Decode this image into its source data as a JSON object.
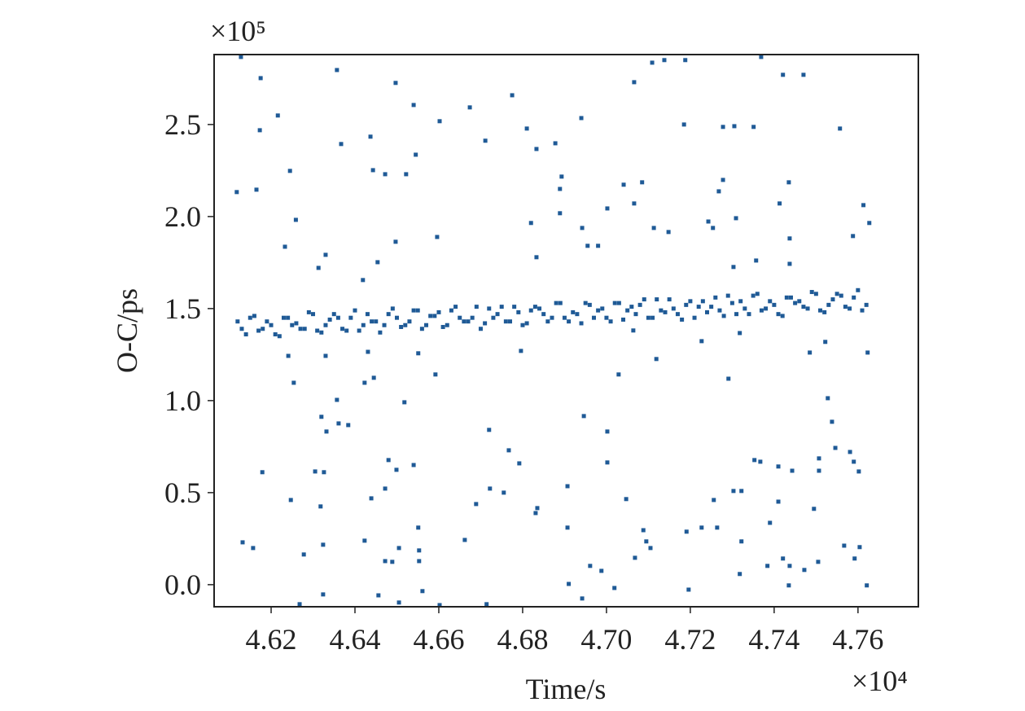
{
  "chart_data": {
    "type": "scatter",
    "x_label": "Time/s",
    "y_label": "O-C/ps",
    "x_multiplier": "×10⁴",
    "y_multiplier": "×10⁵",
    "color": "#1f5a96",
    "xlim": [
      4.6064,
      4.7744
    ],
    "ylim": [
      -0.12,
      2.88
    ],
    "xticks": [
      4.62,
      4.64,
      4.66,
      4.68,
      {
        "value": 4.7,
        "label": "4.70"
      },
      4.72,
      4.74,
      4.76
    ],
    "yticks": [
      {
        "value": 0,
        "label": "0.0"
      },
      0.5,
      {
        "value": 1,
        "label": "1.0"
      },
      1.5,
      {
        "value": 2,
        "label": "2.0"
      },
      2.5
    ],
    "x": [
      4.6128,
      4.6175,
      4.6118,
      4.6165,
      4.6173,
      4.6216,
      4.6245,
      4.6259,
      4.6233,
      4.6357,
      4.6367,
      4.6437,
      4.6443,
      4.6472,
      4.6497,
      4.6522,
      4.654,
      4.6545,
      4.6454,
      4.6497,
      4.6596,
      4.6602,
      4.6313,
      4.633,
      4.6419,
      4.6674,
      4.6711,
      4.6775,
      4.681,
      4.682,
      4.6833,
      4.6833,
      4.6878,
      4.6893,
      4.6889,
      4.6889,
      4.694,
      4.6942,
      4.6955,
      4.698,
      4.7002,
      4.7041,
      4.7066,
      4.7066,
      4.7085,
      4.7113,
      4.7109,
      4.7138,
      4.7148,
      4.7185,
      4.7188,
      4.7243,
      4.7254,
      4.7268,
      4.7278,
      4.7278,
      4.7305,
      4.7309,
      4.7303,
      4.7351,
      4.7357,
      4.7369,
      4.7413,
      4.7421,
      4.7435,
      4.7437,
      4.7437,
      4.747,
      4.7557,
      4.7613,
      4.7627,
      4.7588,
      4.6241,
      4.6254,
      4.633,
      4.6357,
      4.632,
      4.6332,
      4.6361,
      4.6384,
      4.6423,
      4.6445,
      4.6431,
      4.6518,
      4.6551,
      4.6592,
      4.6796,
      4.672,
      4.6946,
      4.7002,
      4.7029,
      4.7119,
      4.7064,
      4.7227,
      4.7291,
      4.7318,
      4.7485,
      4.7522,
      4.7528,
      4.7538,
      4.7623,
      4.7546,
      4.7581,
      4.759,
      4.7602,
      4.7507,
      4.7507,
      4.7443,
      4.741,
      4.7353,
      4.7367,
      4.7322,
      4.7303,
      4.7256,
      4.741,
      4.7495,
      4.739,
      4.7322,
      4.7264,
      4.7227,
      4.7191,
      4.7088,
      4.7095,
      4.7105,
      4.7068,
      4.7047,
      4.6988,
      4.6961,
      4.7002,
      4.6907,
      4.6907,
      4.6835,
      4.6792,
      4.6767,
      4.6755,
      4.6722,
      4.6689,
      4.6662,
      4.6831,
      4.654,
      4.6499,
      4.648,
      4.6472,
      4.6439,
      4.6247,
      4.6305,
      4.6326,
      4.6318,
      4.6179,
      4.6132,
      4.6157,
      4.6278,
      4.6324,
      4.6423,
      4.6472,
      4.6489,
      4.6505,
      4.6551,
      4.6553,
      4.6553,
      4.6561,
      4.6602,
      4.6456,
      4.6505,
      4.6324,
      4.6268,
      4.6714,
      4.691,
      4.6942,
      4.7019,
      4.7196,
      4.7318,
      4.7384,
      4.7421,
      4.7435,
      4.7437,
      4.7472,
      4.7505,
      4.7567,
      4.7592,
      4.7604,
      4.7621,
      4.612,
      4.614,
      4.616,
      4.618,
      4.62,
      4.622,
      4.624,
      4.626,
      4.628,
      4.63,
      4.632,
      4.634,
      4.636,
      4.638,
      4.64,
      4.642,
      4.644,
      4.646,
      4.648,
      4.65,
      4.652,
      4.654,
      4.656,
      4.658,
      4.66,
      4.662,
      4.664,
      4.666,
      4.668,
      4.67,
      4.672,
      4.674,
      4.676,
      4.678,
      4.68,
      4.682,
      4.684,
      4.686,
      4.688,
      4.69,
      4.692,
      4.694,
      4.696,
      4.698,
      4.7,
      4.702,
      4.704,
      4.706,
      4.708,
      4.71,
      4.712,
      4.714,
      4.716,
      4.718,
      4.72,
      4.722,
      4.724,
      4.726,
      4.728,
      4.73,
      4.732,
      4.734,
      4.736,
      4.738,
      4.74,
      4.742,
      4.744,
      4.746,
      4.748,
      4.75,
      4.752,
      4.754,
      4.756,
      4.758,
      4.76,
      4.762,
      4.613,
      4.615,
      4.617,
      4.619,
      4.621,
      4.623,
      4.625,
      4.627,
      4.629,
      4.631,
      4.633,
      4.635,
      4.637,
      4.639,
      4.641,
      4.643,
      4.645,
      4.647,
      4.649,
      4.651,
      4.653,
      4.655,
      4.657,
      4.659,
      4.661,
      4.663,
      4.665,
      4.667,
      4.669,
      4.671,
      4.673,
      4.675,
      4.677,
      4.679,
      4.681,
      4.683,
      4.685,
      4.687,
      4.689,
      4.691,
      4.693,
      4.695,
      4.697,
      4.699,
      4.701,
      4.703,
      4.705,
      4.707,
      4.709,
      4.711,
      4.713,
      4.715,
      4.717,
      4.719,
      4.721,
      4.723,
      4.725,
      4.727,
      4.729,
      4.731,
      4.733,
      4.735,
      4.737,
      4.739,
      4.741,
      4.743,
      4.745,
      4.747,
      4.749,
      4.751,
      4.753,
      4.755,
      4.757,
      4.759,
      4.761
    ],
    "values": [
      2.867,
      2.752,
      2.133,
      2.146,
      2.469,
      2.549,
      2.248,
      1.982,
      1.836,
      2.796,
      2.394,
      2.434,
      2.252,
      2.23,
      2.726,
      2.23,
      2.606,
      2.336,
      1.752,
      1.863,
      1.889,
      2.518,
      1.721,
      1.792,
      1.655,
      2.593,
      2.412,
      2.659,
      2.478,
      1.965,
      2.367,
      1.779,
      2.398,
      2.217,
      2.018,
      2.15,
      2.535,
      1.938,
      1.841,
      1.841,
      2.044,
      2.173,
      2.071,
      2.73,
      2.186,
      1.938,
      2.836,
      2.85,
      1.916,
      2.5,
      2.85,
      1.973,
      1.938,
      2.137,
      2.199,
      2.487,
      2.491,
      1.991,
      1.726,
      2.487,
      1.761,
      2.867,
      2.071,
      2.77,
      2.186,
      1.881,
      1.743,
      2.77,
      2.478,
      2.062,
      1.965,
      1.894,
      1.243,
      1.097,
      1.243,
      1.004,
      0.912,
      0.832,
      0.876,
      0.867,
      1.097,
      1.124,
      1.265,
      0.991,
      1.257,
      1.142,
      1.27,
      0.841,
      0.916,
      0.832,
      1.142,
      1.226,
      1.381,
      1.323,
      1.119,
      1.367,
      1.261,
      1.319,
      1.013,
      0.885,
      1.261,
      0.743,
      0.721,
      0.668,
      0.615,
      0.686,
      0.619,
      0.619,
      0.642,
      0.677,
      0.668,
      0.509,
      0.509,
      0.46,
      0.451,
      0.412,
      0.336,
      0.235,
      0.31,
      0.31,
      0.288,
      0.296,
      0.235,
      0.199,
      0.146,
      0.465,
      0.075,
      0.102,
      0.664,
      0.535,
      0.31,
      0.416,
      0.659,
      0.73,
      0.5,
      0.522,
      0.438,
      0.243,
      0.389,
      0.65,
      0.624,
      0.677,
      0.522,
      0.469,
      0.46,
      0.615,
      0.611,
      0.425,
      0.611,
      0.23,
      0.199,
      0.164,
      0.217,
      0.239,
      0.128,
      0.124,
      0.199,
      0.31,
      0.186,
      0.128,
      -0.035,
      -0.111,
      -0.058,
      -0.097,
      -0.053,
      -0.106,
      -0.106,
      0.004,
      -0.075,
      -0.018,
      -0.027,
      0.058,
      0.102,
      0.142,
      -0.004,
      0.102,
      0.08,
      0.124,
      0.212,
      0.142,
      0.204,
      -0.004,
      1.43,
      1.36,
      1.46,
      1.39,
      1.41,
      1.35,
      1.45,
      1.42,
      1.39,
      1.47,
      1.37,
      1.44,
      1.45,
      1.38,
      1.49,
      1.41,
      1.43,
      1.37,
      1.47,
      1.45,
      1.41,
      1.49,
      1.39,
      1.46,
      1.48,
      1.41,
      1.51,
      1.43,
      1.45,
      1.39,
      1.5,
      1.47,
      1.43,
      1.51,
      1.41,
      1.49,
      1.5,
      1.43,
      1.53,
      1.45,
      1.48,
      1.42,
      1.52,
      1.49,
      1.45,
      1.53,
      1.44,
      1.51,
      1.52,
      1.45,
      1.55,
      1.48,
      1.5,
      1.44,
      1.54,
      1.51,
      1.48,
      1.56,
      1.46,
      1.53,
      1.54,
      1.47,
      1.58,
      1.5,
      1.52,
      1.46,
      1.56,
      1.54,
      1.5,
      1.58,
      1.48,
      1.55,
      1.57,
      1.5,
      1.6,
      1.52,
      1.39,
      1.45,
      1.38,
      1.43,
      1.36,
      1.45,
      1.41,
      1.39,
      1.48,
      1.38,
      1.41,
      1.47,
      1.39,
      1.45,
      1.38,
      1.47,
      1.43,
      1.41,
      1.5,
      1.4,
      1.43,
      1.49,
      1.41,
      1.46,
      1.4,
      1.49,
      1.45,
      1.43,
      1.51,
      1.42,
      1.45,
      1.51,
      1.43,
      1.48,
      1.42,
      1.51,
      1.47,
      1.45,
      1.53,
      1.43,
      1.47,
      1.53,
      1.45,
      1.5,
      1.43,
      1.53,
      1.49,
      1.47,
      1.55,
      1.45,
      1.49,
      1.55,
      1.47,
      1.52,
      1.45,
      1.54,
      1.51,
      1.49,
      1.57,
      1.47,
      1.5,
      1.57,
      1.49,
      1.54,
      1.47,
      1.56,
      1.53,
      1.51,
      1.59,
      1.49,
      1.52,
      1.58,
      1.51,
      1.56,
      1.49
    ]
  }
}
